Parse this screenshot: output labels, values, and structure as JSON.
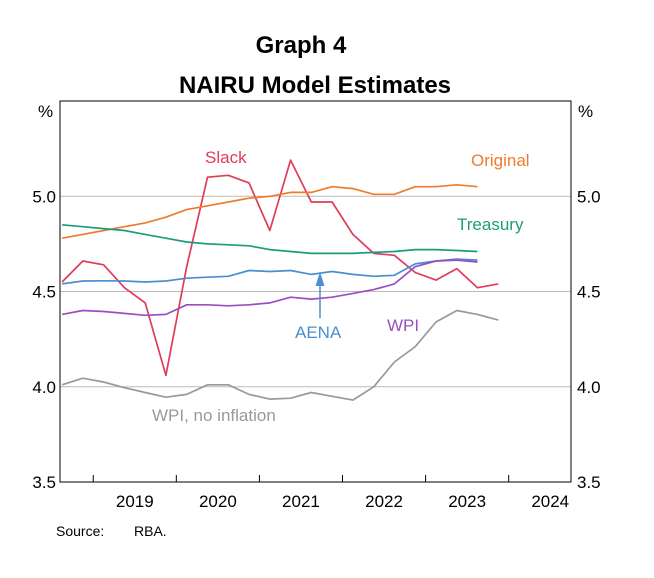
{
  "title_number": "Graph 4",
  "title": "NAIRU Model Estimates",
  "source_label": "Source:",
  "source_value": "RBA.",
  "chart_data": {
    "type": "line",
    "title": "NAIRU Model Estimates",
    "y_unit_left": "%",
    "y_unit_right": "%",
    "ylim": [
      3.5,
      5.5
    ],
    "yticks": [
      3.5,
      4.0,
      4.5,
      5.0
    ],
    "ytick_labels": [
      "3.5",
      "4.0",
      "4.5",
      "5.0"
    ],
    "xlim": [
      2018.6,
      2024.75
    ],
    "xtick_labels": [
      "2019",
      "2020",
      "2021",
      "2022",
      "2023",
      "2024"
    ],
    "grid": "horizontal",
    "series": [
      {
        "name": "Slack",
        "color": "#e03c5a",
        "x": [
          2018.625,
          2018.875,
          2019.125,
          2019.375,
          2019.625,
          2019.875,
          2020.125,
          2020.375,
          2020.625,
          2020.875,
          2021.125,
          2021.375,
          2021.625,
          2021.875,
          2022.125,
          2022.375,
          2022.625,
          2022.875,
          2023.125,
          2023.375,
          2023.625,
          2023.875,
          2024.125,
          2024.375
        ],
        "y": [
          4.55,
          4.66,
          4.64,
          4.52,
          4.44,
          4.06,
          4.63,
          5.1,
          5.11,
          5.07,
          4.82,
          5.19,
          4.97,
          4.97,
          4.8,
          4.7,
          4.69,
          4.6,
          4.56,
          4.62,
          4.52,
          4.54,
          null,
          null
        ]
      },
      {
        "name": "Original",
        "color": "#f07b2c",
        "x": [
          2018.625,
          2018.875,
          2019.125,
          2019.375,
          2019.625,
          2019.875,
          2020.125,
          2020.375,
          2020.625,
          2020.875,
          2021.125,
          2021.375,
          2021.625,
          2021.875,
          2022.125,
          2022.375,
          2022.625,
          2022.875,
          2023.125,
          2023.375,
          2023.625,
          2023.875,
          2024.125,
          2024.375
        ],
        "y": [
          4.78,
          4.8,
          4.82,
          4.84,
          4.86,
          4.89,
          4.93,
          4.95,
          4.97,
          4.99,
          5.0,
          5.02,
          5.02,
          5.05,
          5.04,
          5.01,
          5.01,
          5.05,
          5.05,
          5.06,
          5.05,
          null,
          null,
          null
        ]
      },
      {
        "name": "Treasury",
        "color": "#1a9e7a",
        "x": [
          2018.625,
          2018.875,
          2019.125,
          2019.375,
          2019.625,
          2019.875,
          2020.125,
          2020.375,
          2020.625,
          2020.875,
          2021.125,
          2021.375,
          2021.625,
          2021.875,
          2022.125,
          2022.375,
          2022.625,
          2022.875,
          2023.125,
          2023.375,
          2023.625,
          2023.875,
          2024.125,
          2024.375
        ],
        "y": [
          4.85,
          4.84,
          4.83,
          4.82,
          4.8,
          4.78,
          4.76,
          4.75,
          4.745,
          4.74,
          4.72,
          4.71,
          4.7,
          4.7,
          4.7,
          4.705,
          4.71,
          4.72,
          4.72,
          4.715,
          4.71,
          null,
          null,
          null
        ]
      },
      {
        "name": "AENA",
        "color": "#4a8fd0",
        "x": [
          2018.625,
          2018.875,
          2019.125,
          2019.375,
          2019.625,
          2019.875,
          2020.125,
          2020.375,
          2020.625,
          2020.875,
          2021.125,
          2021.375,
          2021.625,
          2021.875,
          2022.125,
          2022.375,
          2022.625,
          2022.875,
          2023.125,
          2023.375,
          2023.625,
          2023.875,
          2024.125,
          2024.375
        ],
        "y": [
          4.54,
          4.555,
          4.556,
          4.555,
          4.55,
          4.555,
          4.57,
          4.575,
          4.58,
          4.61,
          4.605,
          4.61,
          4.59,
          4.605,
          4.59,
          4.58,
          4.585,
          4.645,
          4.66,
          4.67,
          4.665,
          null,
          null,
          null
        ]
      },
      {
        "name": "WPI",
        "color": "#9a4fc0",
        "x": [
          2018.625,
          2018.875,
          2019.125,
          2019.375,
          2019.625,
          2019.875,
          2020.125,
          2020.375,
          2020.625,
          2020.875,
          2021.125,
          2021.375,
          2021.625,
          2021.875,
          2022.125,
          2022.375,
          2022.625,
          2022.875,
          2023.125,
          2023.375,
          2023.625,
          2023.875,
          2024.125,
          2024.375
        ],
        "y": [
          4.38,
          4.4,
          4.395,
          4.385,
          4.375,
          4.38,
          4.43,
          4.43,
          4.425,
          4.43,
          4.44,
          4.47,
          4.46,
          4.47,
          4.49,
          4.51,
          4.54,
          4.63,
          4.66,
          4.665,
          4.655,
          null,
          null,
          null
        ]
      },
      {
        "name": "WPI, no inflation",
        "color": "#999999",
        "x": [
          2018.625,
          2018.875,
          2019.125,
          2019.375,
          2019.625,
          2019.875,
          2020.125,
          2020.375,
          2020.625,
          2020.875,
          2021.125,
          2021.375,
          2021.625,
          2021.875,
          2022.125,
          2022.375,
          2022.625,
          2022.875,
          2023.125,
          2023.375,
          2023.625,
          2023.875,
          2024.125,
          2024.375
        ],
        "y": [
          4.01,
          4.045,
          4.025,
          3.995,
          3.97,
          3.945,
          3.96,
          4.01,
          4.01,
          3.96,
          3.935,
          3.94,
          3.97,
          3.95,
          3.93,
          4.0,
          4.13,
          4.21,
          4.34,
          4.4,
          4.38,
          4.35,
          null,
          null
        ]
      }
    ],
    "annotations": [
      {
        "text": "Slack",
        "series": "Slack"
      },
      {
        "text": "Original",
        "series": "Original"
      },
      {
        "text": "Treasury",
        "series": "Treasury"
      },
      {
        "text": "AENA",
        "series": "AENA",
        "arrow": true
      },
      {
        "text": "WPI",
        "series": "WPI"
      },
      {
        "text": "WPI, no inflation",
        "series": "WPI, no inflation"
      }
    ]
  }
}
